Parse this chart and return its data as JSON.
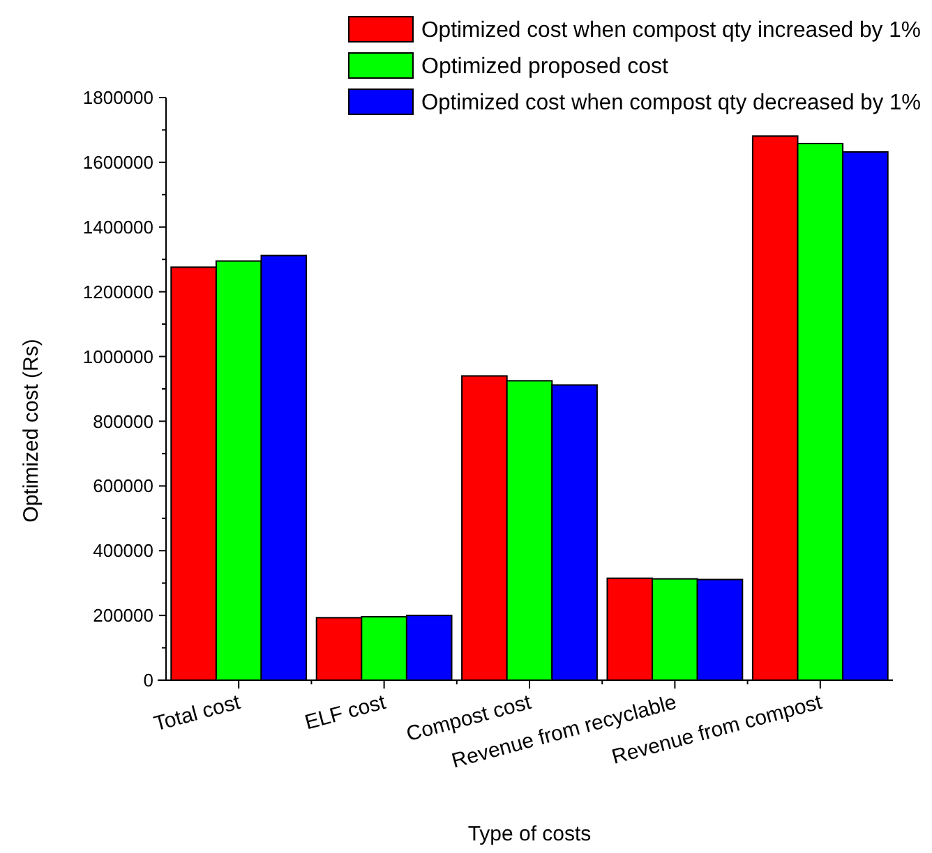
{
  "chart_data": {
    "type": "bar",
    "xlabel": "Type of costs",
    "ylabel": "Optimized cost (Rs)",
    "categories": [
      "Total cost",
      "ELF cost",
      "Compost cost",
      "Revenue from recyclable",
      "Revenue from compost"
    ],
    "series": [
      {
        "name": "Optimized cost when compost qty increased by 1%",
        "color": "#ff0000",
        "values": [
          1276000,
          193000,
          940000,
          315000,
          1681000
        ]
      },
      {
        "name": "Optimized proposed cost",
        "color": "#00ff00",
        "values": [
          1295000,
          196000,
          925000,
          313000,
          1658000
        ]
      },
      {
        "name": "Optimized cost when compost qty decreased by 1%",
        "color": "#0000ff",
        "values": [
          1312000,
          200000,
          912000,
          311000,
          1632000
        ]
      }
    ],
    "ylim": [
      0,
      1800000
    ],
    "yticks": [
      0,
      200000,
      400000,
      600000,
      800000,
      1000000,
      1200000,
      1400000,
      1600000,
      1800000
    ],
    "legend": "top right",
    "grid": false
  }
}
